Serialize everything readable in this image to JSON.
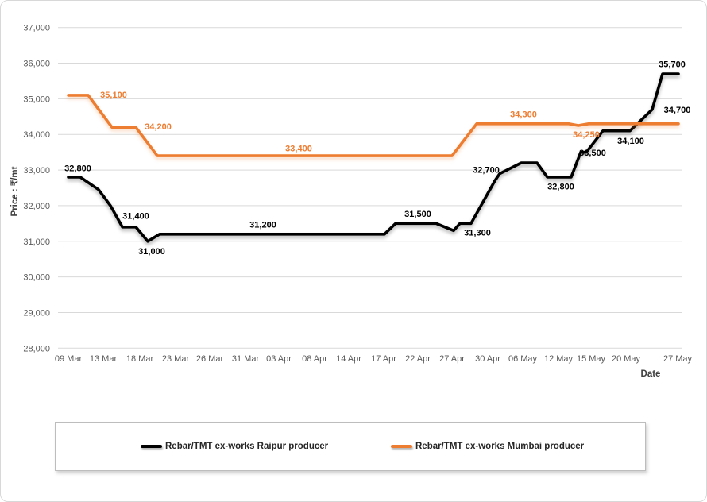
{
  "chart_data": {
    "type": "line",
    "title": "",
    "y_axis": {
      "title": "Price : ₹/mt",
      "min": 28000,
      "max": 37000,
      "step": 1000,
      "ticks": [
        {
          "v": 37000,
          "label": "37,000"
        },
        {
          "v": 36000,
          "label": "36,000"
        },
        {
          "v": 35000,
          "label": "35,000"
        },
        {
          "v": 34000,
          "label": "34,000"
        },
        {
          "v": 33000,
          "label": "33,000"
        },
        {
          "v": 32000,
          "label": "32,000"
        },
        {
          "v": 31000,
          "label": "31,000"
        },
        {
          "v": 30000,
          "label": "30,000"
        },
        {
          "v": 29000,
          "label": "29,000"
        },
        {
          "v": 28000,
          "label": "28,000"
        }
      ]
    },
    "x_axis": {
      "title": "Date",
      "ticks": [
        {
          "f": 0.0,
          "label": "09 Mar"
        },
        {
          "f": 0.0573,
          "label": "13 Mar"
        },
        {
          "f": 0.1172,
          "label": "18 Mar"
        },
        {
          "f": 0.1758,
          "label": "23 Mar"
        },
        {
          "f": 0.2318,
          "label": "26 Mar"
        },
        {
          "f": 0.2904,
          "label": "31 Mar"
        },
        {
          "f": 0.3451,
          "label": "03 Apr"
        },
        {
          "f": 0.4036,
          "label": "08 Apr"
        },
        {
          "f": 0.4596,
          "label": "14 Apr"
        },
        {
          "f": 0.5169,
          "label": "17 Apr"
        },
        {
          "f": 0.5729,
          "label": "22 Apr"
        },
        {
          "f": 0.6289,
          "label": "27 Apr"
        },
        {
          "f": 0.6875,
          "label": "30 Apr"
        },
        {
          "f": 0.7448,
          "label": "06 May"
        },
        {
          "f": 0.8034,
          "label": "12 May"
        },
        {
          "f": 0.8568,
          "label": "15 May"
        },
        {
          "f": 0.9141,
          "label": "20 May"
        },
        {
          "f": 0.9987,
          "label": "27 May"
        }
      ]
    },
    "series": [
      {
        "name": "Rebar/TMT ex-works Raipur producer",
        "color": "#000000",
        "points": [
          [
            0.0,
            32800
          ],
          [
            0.0195,
            32800
          ],
          [
            0.0495,
            32450
          ],
          [
            0.069,
            32000
          ],
          [
            0.0885,
            31400
          ],
          [
            0.1107,
            31400
          ],
          [
            0.1302,
            31000
          ],
          [
            0.1497,
            31200
          ],
          [
            0.5182,
            31200
          ],
          [
            0.5365,
            31500
          ],
          [
            0.6029,
            31500
          ],
          [
            0.6315,
            31300
          ],
          [
            0.6419,
            31500
          ],
          [
            0.6602,
            31500
          ],
          [
            0.6992,
            32700
          ],
          [
            0.707,
            32900
          ],
          [
            0.7422,
            33200
          ],
          [
            0.7682,
            33200
          ],
          [
            0.7852,
            32800
          ],
          [
            0.8242,
            32800
          ],
          [
            0.8398,
            33500
          ],
          [
            0.849,
            33500
          ],
          [
            0.8763,
            34100
          ],
          [
            0.9206,
            34100
          ],
          [
            0.957,
            34700
          ],
          [
            0.974,
            35700
          ],
          [
            1.0,
            35700
          ]
        ],
        "point_labels": [
          {
            "text": "32,800",
            "f": 0.0156,
            "at": 33060
          },
          {
            "text": "31,400",
            "f": 0.1107,
            "at": 31720
          },
          {
            "text": "31,000",
            "f": 0.1367,
            "at": 30730
          },
          {
            "text": "31,200",
            "f": 0.319,
            "at": 31470
          },
          {
            "text": "31,500",
            "f": 0.5729,
            "at": 31780
          },
          {
            "text": "31,300",
            "f": 0.6706,
            "at": 31250
          },
          {
            "text": "32,700",
            "f": 0.6849,
            "at": 33010
          },
          {
            "text": "32,800",
            "f": 0.8073,
            "at": 32550
          },
          {
            "text": "33,500",
            "f": 0.8594,
            "at": 33490
          },
          {
            "text": "34,100",
            "f": 0.9219,
            "at": 33830
          },
          {
            "text": "34,700",
            "f": 0.998,
            "at": 34700
          },
          {
            "text": "35,700",
            "f": 0.9896,
            "at": 35980
          }
        ]
      },
      {
        "name": "Rebar/TMT ex-works Mumbai producer",
        "color": "#ED7D31",
        "points": [
          [
            0.0,
            35100
          ],
          [
            0.0326,
            35100
          ],
          [
            0.0716,
            34200
          ],
          [
            0.1107,
            34200
          ],
          [
            0.1458,
            33400
          ],
          [
            0.6289,
            33400
          ],
          [
            0.6693,
            34300
          ],
          [
            0.8203,
            34300
          ],
          [
            0.8359,
            34250
          ],
          [
            0.8529,
            34300
          ],
          [
            1.0,
            34300
          ]
        ],
        "point_labels": [
          {
            "text": "35,100",
            "f": 0.0742,
            "at": 35120
          },
          {
            "text": "34,200",
            "f": 0.1471,
            "at": 34230
          },
          {
            "text": "33,400",
            "f": 0.3776,
            "at": 33610
          },
          {
            "text": "34,300",
            "f": 0.7461,
            "at": 34570
          },
          {
            "text": "34,250",
            "f": 0.849,
            "at": 34010
          }
        ]
      }
    ],
    "legend": {
      "items": [
        "Rebar/TMT ex-works Raipur producer",
        "Rebar/TMT ex-works Mumbai producer"
      ]
    },
    "colors": {
      "gridline": "#D9D9D9",
      "axis_text": "#595959",
      "axis_title_text": "#3f3f3f",
      "raipur_series": "#000000",
      "mumbai_series": "#ED7D31"
    }
  }
}
